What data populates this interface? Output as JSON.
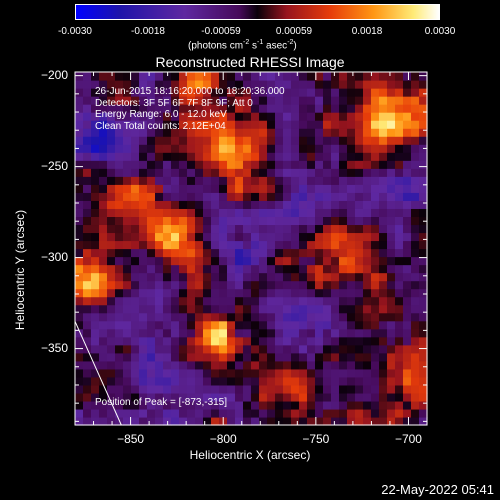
{
  "colorbar": {
    "tick_labels": [
      "-0.0030",
      "-0.0018",
      "-0.00059",
      "0.00059",
      "0.0018",
      "0.0030"
    ],
    "units_main": "(photons cm",
    "units_exp1": "-2",
    "units_s": " s",
    "units_exp2": "-1",
    "units_asec": " asec",
    "units_exp3": "-2",
    "units_close": ")"
  },
  "chart_data": {
    "type": "heatmap",
    "title": "Reconstructed RHESSI Image",
    "xlabel": "Heliocentric X (arcsec)",
    "ylabel": "Heliocentric Y (arcsec)",
    "xlim": [
      -880,
      -690
    ],
    "ylim": [
      -392,
      -198
    ],
    "x_ticks": [
      -850,
      -800,
      -750,
      -700
    ],
    "y_ticks": [
      -200,
      -250,
      -300,
      -350
    ],
    "x_tick_labels": [
      "−850",
      "−800",
      "−750",
      "−700"
    ],
    "y_tick_labels": [
      "−200",
      "−250",
      "−300",
      "−350"
    ],
    "color_range": [
      -0.003,
      0.003
    ],
    "info_lines": [
      "26-Jun-2015 18:16:20.000 to 18:20:36.000",
      "Detectors: 3F 5F 6F 7F 8F 9F; Att 0",
      "Energy Range: 6.0 - 12.0 keV",
      "Clean    Total counts: 2.12E+04"
    ],
    "peak_label": "Position of Peak = [-873,-315]",
    "peak": {
      "x": -873,
      "y": -315
    },
    "limb_line": [
      [
        -880,
        -335
      ],
      [
        -855,
        -392
      ]
    ]
  },
  "footer": {
    "timestamp": "22-May-2022 05:41"
  }
}
